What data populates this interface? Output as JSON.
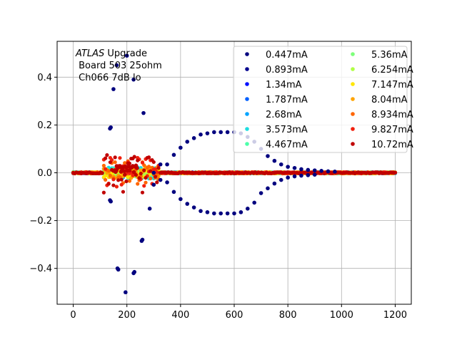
{
  "chart_data": {
    "type": "scatter",
    "title": "",
    "xlabel": "",
    "ylabel": "",
    "xlim": [
      -60,
      1260
    ],
    "ylim": [
      -0.55,
      0.55
    ],
    "x_ticks": [
      0,
      200,
      400,
      600,
      800,
      1000,
      1200
    ],
    "x_tick_labels": [
      "0",
      "200",
      "400",
      "600",
      "800",
      "1000",
      "1200"
    ],
    "y_ticks": [
      -0.4,
      -0.2,
      0.0,
      0.2,
      0.4
    ],
    "y_tick_labels": [
      "−0.4",
      "−0.2",
      "0.0",
      "0.2",
      "0.4"
    ],
    "grid": true,
    "legend_placement": "top-right",
    "legend_columns": 2,
    "annotation": {
      "italic_part": "ATLAS",
      "rest_line1": " Upgrade",
      "line2": " Board 503 25ohm",
      "line3": " Ch066 7dB lo"
    },
    "series": [
      {
        "name": "0.447mA",
        "color": "#00007f",
        "amplitude": 0.5
      },
      {
        "name": "0.893mA",
        "color": "#00008f",
        "amplitude": 0.45
      },
      {
        "name": "1.34mA",
        "color": "#0010ff",
        "amplitude": 0.02
      },
      {
        "name": "1.787mA",
        "color": "#0060ff",
        "amplitude": 0.02
      },
      {
        "name": "2.68mA",
        "color": "#00a4ff",
        "amplitude": 0.02
      },
      {
        "name": "3.573mA",
        "color": "#1fdde0",
        "amplitude": 0.025
      },
      {
        "name": "4.467mA",
        "color": "#4dffaa",
        "amplitude": 0.02
      },
      {
        "name": "5.36mA",
        "color": "#7dff7a",
        "amplitude": 0.015
      },
      {
        "name": "6.254mA",
        "color": "#b0ff46",
        "amplitude": 0.015
      },
      {
        "name": "7.147mA",
        "color": "#ffe600",
        "amplitude": 0.02
      },
      {
        "name": "8.04mA",
        "color": "#ffa400",
        "amplitude": 0.025
      },
      {
        "name": "8.934mA",
        "color": "#ff6600",
        "amplitude": 0.035
      },
      {
        "name": "9.827mA",
        "color": "#f1200e",
        "amplitude": 0.05
      },
      {
        "name": "10.72mA",
        "color": "#c00000",
        "amplitude": 0.06
      }
    ],
    "envelope_points_upper": [
      [
        137,
        0.185
      ],
      [
        140,
        0.19
      ],
      [
        150,
        0.35
      ],
      [
        162,
        0.45
      ],
      [
        200,
        0.49
      ],
      [
        225,
        0.39
      ],
      [
        262,
        0.25
      ],
      [
        300,
        0.0
      ],
      [
        325,
        0.035
      ],
      [
        350,
        0.035
      ],
      [
        375,
        0.075
      ],
      [
        400,
        0.105
      ],
      [
        425,
        0.13
      ],
      [
        450,
        0.145
      ],
      [
        475,
        0.16
      ],
      [
        500,
        0.165
      ],
      [
        525,
        0.17
      ],
      [
        550,
        0.17
      ],
      [
        575,
        0.17
      ],
      [
        600,
        0.17
      ],
      [
        625,
        0.165
      ],
      [
        650,
        0.15
      ],
      [
        675,
        0.13
      ],
      [
        700,
        0.1
      ],
      [
        725,
        0.07
      ],
      [
        750,
        0.05
      ],
      [
        775,
        0.035
      ],
      [
        800,
        0.025
      ],
      [
        825,
        0.02
      ],
      [
        850,
        0.015
      ],
      [
        875,
        0.012
      ],
      [
        900,
        0.01
      ],
      [
        925,
        0.008
      ],
      [
        950,
        0.006
      ],
      [
        975,
        0.005
      ]
    ],
    "envelope_points_lower": [
      [
        137,
        -0.115
      ],
      [
        140,
        -0.12
      ],
      [
        165,
        -0.4
      ],
      [
        168,
        -0.405
      ],
      [
        195,
        -0.5
      ],
      [
        225,
        -0.42
      ],
      [
        228,
        -0.415
      ],
      [
        255,
        -0.285
      ],
      [
        258,
        -0.28
      ],
      [
        285,
        -0.15
      ],
      [
        300,
        -0.05
      ],
      [
        325,
        -0.03
      ],
      [
        350,
        -0.04
      ],
      [
        375,
        -0.08
      ],
      [
        400,
        -0.11
      ],
      [
        425,
        -0.13
      ],
      [
        450,
        -0.145
      ],
      [
        475,
        -0.16
      ],
      [
        500,
        -0.165
      ],
      [
        525,
        -0.17
      ],
      [
        550,
        -0.17
      ],
      [
        575,
        -0.17
      ],
      [
        600,
        -0.17
      ],
      [
        625,
        -0.165
      ],
      [
        650,
        -0.15
      ],
      [
        675,
        -0.125
      ],
      [
        700,
        -0.085
      ],
      [
        725,
        -0.065
      ],
      [
        750,
        -0.045
      ],
      [
        775,
        -0.03
      ],
      [
        800,
        -0.02
      ],
      [
        825,
        -0.015
      ],
      [
        850,
        -0.012
      ],
      [
        875,
        -0.01
      ],
      [
        900,
        -0.008
      ]
    ]
  }
}
